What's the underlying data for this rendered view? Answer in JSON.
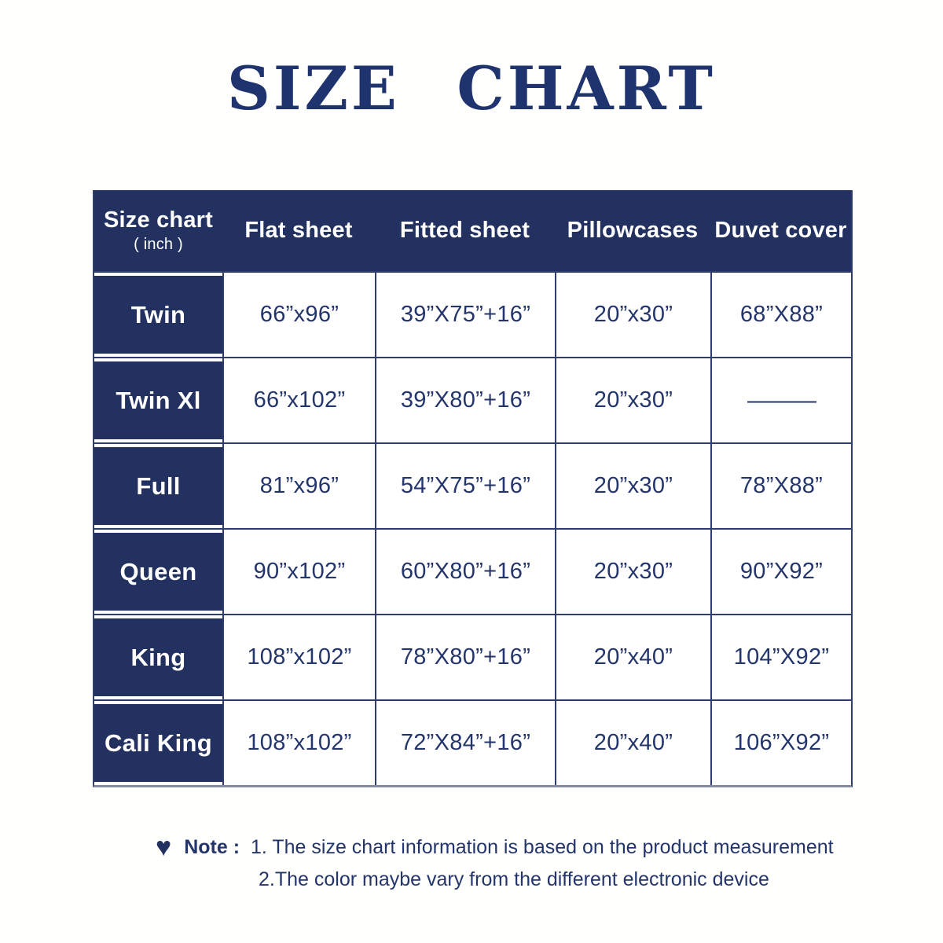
{
  "title": "SIZE CHART",
  "colors": {
    "navy": "#22315f",
    "border": "#2e3d6d",
    "text": "#24356b",
    "title": "#1f346e",
    "bottom-border": "#828ba1"
  },
  "table": {
    "header": {
      "size_chart_label": "Size chart",
      "size_chart_unit": "( inch )",
      "columns": [
        "Flat sheet",
        "Fitted sheet",
        "Pillowcases",
        "Duvet cover"
      ]
    },
    "rows": [
      {
        "size": "Twin",
        "flat_sheet": "66”x96”",
        "fitted_sheet": "39”X75”+16”",
        "pillowcases": "20”x30”",
        "duvet_cover": "68”X88”"
      },
      {
        "size": "Twin Xl",
        "flat_sheet": "66”x102”",
        "fitted_sheet": "39”X80”+16”",
        "pillowcases": "20”x30”",
        "duvet_cover": "———"
      },
      {
        "size": "Full",
        "flat_sheet": "81”x96”",
        "fitted_sheet": "54”X75”+16”",
        "pillowcases": "20”x30”",
        "duvet_cover": "78”X88”"
      },
      {
        "size": "Queen",
        "flat_sheet": "90”x102”",
        "fitted_sheet": "60”X80”+16”",
        "pillowcases": "20”x30”",
        "duvet_cover": "90”X92”"
      },
      {
        "size": "King",
        "flat_sheet": "108”x102”",
        "fitted_sheet": "78”X80”+16”",
        "pillowcases": "20”x40”",
        "duvet_cover": "104”X92”"
      },
      {
        "size": "Cali King",
        "flat_sheet": "108”x102”",
        "fitted_sheet": "72”X84”+16”",
        "pillowcases": "20”x40”",
        "duvet_cover": "106”X92”"
      }
    ]
  },
  "note": {
    "heart_icon_glyph": "♥",
    "label": "Note :",
    "line1": "1. The size chart information is based on the product measurement",
    "line2": "2.The color maybe vary from the different electronic device"
  }
}
